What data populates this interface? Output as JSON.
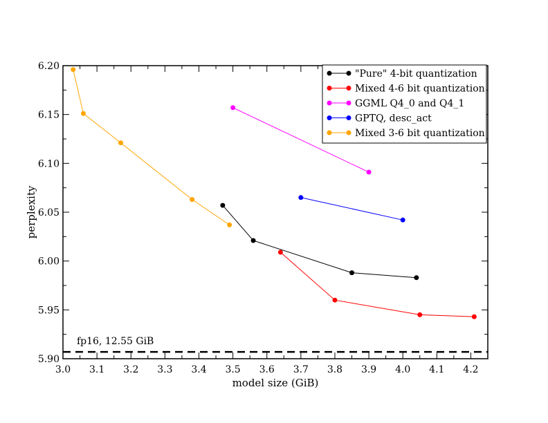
{
  "chart_data": {
    "type": "line",
    "xlabel": "model size (GiB)",
    "ylabel": "perplexity",
    "xlim": [
      3.0,
      4.25
    ],
    "ylim": [
      5.9,
      6.2
    ],
    "xticks": [
      "3.0",
      "3.1",
      "3.2",
      "3.3",
      "3.4",
      "3.5",
      "3.6",
      "3.7",
      "3.8",
      "3.9",
      "4.0",
      "4.1",
      "4.2"
    ],
    "yticks": [
      "5.90",
      "5.95",
      "6.00",
      "6.05",
      "6.10",
      "6.15",
      "6.20"
    ],
    "grid": false,
    "legend_position": "top-right",
    "series": [
      {
        "name": "\"Pure\" 4-bit quantization",
        "color": "#000000",
        "x": [
          3.47,
          3.56,
          3.85,
          4.04
        ],
        "y": [
          6.057,
          6.021,
          5.988,
          5.983
        ]
      },
      {
        "name": "Mixed 4-6 bit quantization",
        "color": "#ff0000",
        "x": [
          3.64,
          3.8,
          4.05,
          4.21
        ],
        "y": [
          6.009,
          5.96,
          5.945,
          5.943
        ]
      },
      {
        "name": "GGML Q4_0 and Q4_1",
        "color": "#ff00ff",
        "x": [
          3.5,
          3.9
        ],
        "y": [
          6.157,
          6.091
        ]
      },
      {
        "name": "GPTQ, desc_act",
        "color": "#0000ff",
        "x": [
          3.7,
          4.0
        ],
        "y": [
          6.065,
          6.042
        ]
      },
      {
        "name": "Mixed 3-6 bit quantization",
        "color": "#ffa500",
        "x": [
          3.03,
          3.06,
          3.17,
          3.38,
          3.49
        ],
        "y": [
          6.196,
          6.151,
          6.121,
          6.063,
          6.037
        ]
      }
    ],
    "reference_line": {
      "y": 5.907,
      "style": "dashed",
      "label": "fp16, 12.55 GiB"
    }
  }
}
